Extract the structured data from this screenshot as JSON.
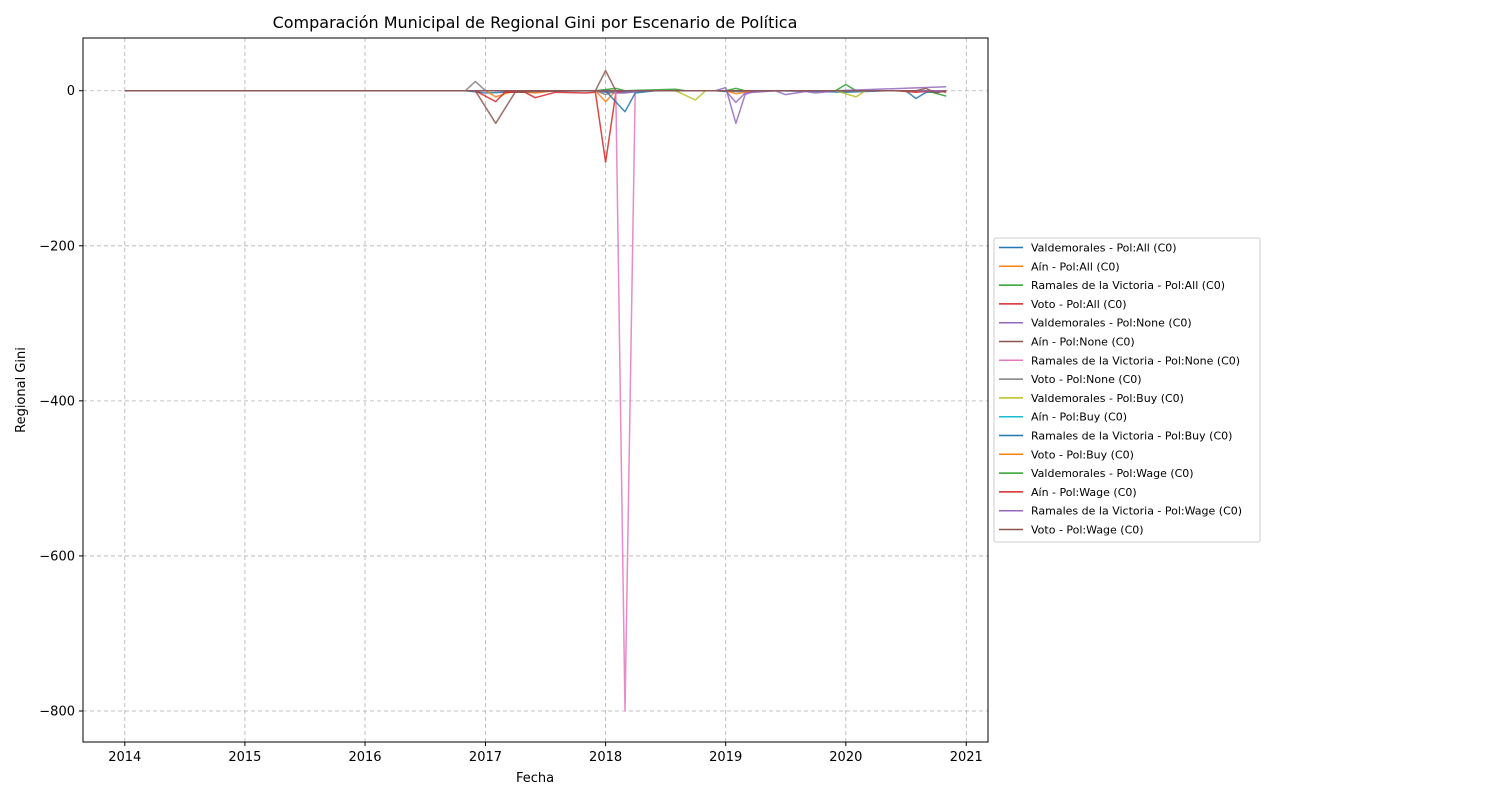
{
  "chart_data": {
    "type": "line",
    "title": "Comparación Municipal de Regional Gini por Escenario de Política",
    "xlabel": "Fecha",
    "ylabel": "Regional Gini",
    "x_ticks": [
      "2014",
      "2015",
      "2016",
      "2017",
      "2018",
      "2019",
      "2020",
      "2021"
    ],
    "y_ticks": [
      0,
      -200,
      -400,
      -600,
      -800
    ],
    "y_tick_labels": [
      "0",
      "−200",
      "−400",
      "−600",
      "−800"
    ],
    "xlim": [
      "2013-08-27",
      "2021-03-08"
    ],
    "ylim": [
      -840,
      68
    ],
    "grid": true,
    "legend_position": "center-right outside",
    "series": [
      {
        "name": "Valdemorales - Pol:All (C0)",
        "color": "#1f77b4",
        "points": [
          [
            "2014-01-01",
            0
          ],
          [
            "2016-11-01",
            0
          ],
          [
            "2017-01-01",
            -3
          ],
          [
            "2017-03-01",
            -2
          ],
          [
            "2017-06-01",
            -1
          ],
          [
            "2017-12-01",
            0
          ],
          [
            "2018-01-01",
            -2
          ],
          [
            "2018-03-01",
            -2
          ],
          [
            "2018-05-01",
            0
          ],
          [
            "2018-12-01",
            0
          ],
          [
            "2019-01-01",
            -1
          ],
          [
            "2019-03-01",
            -1
          ],
          [
            "2019-06-01",
            0
          ],
          [
            "2019-10-01",
            -1
          ],
          [
            "2020-01-01",
            -2
          ],
          [
            "2020-05-01",
            0
          ],
          [
            "2020-07-01",
            0
          ],
          [
            "2020-08-01",
            -10
          ],
          [
            "2020-09-01",
            -2
          ],
          [
            "2020-10-01",
            -2
          ],
          [
            "2020-11-01",
            0
          ]
        ]
      },
      {
        "name": "Aín - Pol:All (C0)",
        "color": "#ff7f0e",
        "points": [
          [
            "2014-01-01",
            0
          ],
          [
            "2016-11-01",
            0
          ],
          [
            "2017-01-01",
            0
          ],
          [
            "2017-02-01",
            -8
          ],
          [
            "2017-04-01",
            0
          ],
          [
            "2017-06-01",
            -3
          ],
          [
            "2017-08-01",
            0
          ],
          [
            "2017-12-01",
            0
          ],
          [
            "2018-01-01",
            -14
          ],
          [
            "2018-02-01",
            0
          ],
          [
            "2018-12-01",
            0
          ],
          [
            "2019-01-01",
            0
          ],
          [
            "2019-02-01",
            -4
          ],
          [
            "2019-04-01",
            0
          ],
          [
            "2020-11-01",
            0
          ]
        ]
      },
      {
        "name": "Ramales de la Victoria - Pol:All (C0)",
        "color": "#2ca02c",
        "points": [
          [
            "2014-01-01",
            0
          ],
          [
            "2017-12-01",
            0
          ],
          [
            "2018-02-01",
            3
          ],
          [
            "2018-03-01",
            0
          ],
          [
            "2018-08-01",
            2
          ],
          [
            "2018-09-01",
            0
          ],
          [
            "2019-01-01",
            0
          ],
          [
            "2019-02-01",
            3
          ],
          [
            "2019-03-01",
            0
          ],
          [
            "2019-12-01",
            0
          ],
          [
            "2020-01-01",
            8
          ],
          [
            "2020-02-01",
            0
          ],
          [
            "2020-11-01",
            0
          ]
        ]
      },
      {
        "name": "Voto - Pol:All (C0)",
        "color": "#d62728",
        "points": [
          [
            "2014-01-01",
            0
          ],
          [
            "2016-12-01",
            0
          ],
          [
            "2017-02-01",
            -14
          ],
          [
            "2017-03-01",
            -2
          ],
          [
            "2017-05-01",
            -2
          ],
          [
            "2017-06-01",
            -9
          ],
          [
            "2017-08-01",
            -2
          ],
          [
            "2017-11-01",
            -3
          ],
          [
            "2017-12-01",
            -2
          ],
          [
            "2018-01-01",
            -92
          ],
          [
            "2018-02-01",
            -3
          ],
          [
            "2018-03-01",
            0
          ],
          [
            "2020-11-01",
            0
          ]
        ]
      },
      {
        "name": "Valdemorales - Pol:None (C0)",
        "color": "#9467bd",
        "points": [
          [
            "2014-01-01",
            0
          ],
          [
            "2017-12-01",
            0
          ],
          [
            "2018-02-01",
            -3
          ],
          [
            "2018-03-01",
            -3
          ],
          [
            "2018-05-01",
            0
          ],
          [
            "2019-01-01",
            0
          ],
          [
            "2019-02-01",
            -15
          ],
          [
            "2019-03-01",
            -3
          ],
          [
            "2019-06-01",
            0
          ],
          [
            "2019-07-01",
            -5
          ],
          [
            "2019-09-01",
            -1
          ],
          [
            "2019-10-01",
            -3
          ],
          [
            "2019-12-01",
            0
          ],
          [
            "2020-11-01",
            5
          ]
        ]
      },
      {
        "name": "Aín - Pol:None (C0)",
        "color": "#8c564b",
        "points": [
          [
            "2014-01-01",
            0
          ],
          [
            "2016-12-01",
            0
          ],
          [
            "2017-02-01",
            -42
          ],
          [
            "2017-04-01",
            -2
          ],
          [
            "2017-09-01",
            0
          ],
          [
            "2017-12-01",
            0
          ],
          [
            "2018-01-01",
            26
          ],
          [
            "2018-02-01",
            0
          ],
          [
            "2018-03-01",
            0
          ],
          [
            "2020-11-01",
            0
          ]
        ]
      },
      {
        "name": "Ramales de la Victoria - Pol:None (C0)",
        "color": "#e377c2",
        "points": [
          [
            "2014-01-01",
            0
          ],
          [
            "2017-12-01",
            0
          ],
          [
            "2018-01-01",
            0
          ],
          [
            "2018-02-01",
            0
          ],
          [
            "2018-03-01",
            -800
          ],
          [
            "2018-04-01",
            0
          ],
          [
            "2018-05-01",
            0
          ],
          [
            "2020-11-01",
            0
          ]
        ]
      },
      {
        "name": "Voto - Pol:None (C0)",
        "color": "#7f7f7f",
        "points": [
          [
            "2014-01-01",
            0
          ],
          [
            "2016-11-01",
            0
          ],
          [
            "2016-12-01",
            12
          ],
          [
            "2017-01-01",
            0
          ],
          [
            "2017-12-01",
            0
          ],
          [
            "2018-01-01",
            -5
          ],
          [
            "2018-02-01",
            0
          ],
          [
            "2020-11-01",
            0
          ]
        ]
      },
      {
        "name": "Valdemorales - Pol:Buy (C0)",
        "color": "#bcbd22",
        "points": [
          [
            "2014-01-01",
            0
          ],
          [
            "2018-08-01",
            0
          ],
          [
            "2018-10-01",
            -12
          ],
          [
            "2018-11-01",
            0
          ],
          [
            "2019-12-01",
            0
          ],
          [
            "2020-02-01",
            -8
          ],
          [
            "2020-03-01",
            0
          ],
          [
            "2020-11-01",
            0
          ]
        ]
      },
      {
        "name": "Aín - Pol:Buy (C0)",
        "color": "#17becf",
        "points": [
          [
            "2014-01-01",
            0
          ],
          [
            "2020-11-01",
            0
          ]
        ]
      },
      {
        "name": "Ramales de la Victoria - Pol:Buy (C0)",
        "color": "#1f77b4",
        "points": [
          [
            "2014-01-01",
            0
          ],
          [
            "2018-01-01",
            0
          ],
          [
            "2018-03-01",
            -27
          ],
          [
            "2018-04-01",
            -3
          ],
          [
            "2018-06-01",
            0
          ],
          [
            "2020-11-01",
            0
          ]
        ]
      },
      {
        "name": "Voto - Pol:Buy (C0)",
        "color": "#ff7f0e",
        "points": [
          [
            "2014-01-01",
            0
          ],
          [
            "2020-11-01",
            0
          ]
        ]
      },
      {
        "name": "Valdemorales - Pol:Wage (C0)",
        "color": "#2ca02c",
        "points": [
          [
            "2014-01-01",
            0
          ],
          [
            "2020-09-01",
            0
          ],
          [
            "2020-11-01",
            -7
          ]
        ]
      },
      {
        "name": "Aín - Pol:Wage (C0)",
        "color": "#d62728",
        "points": [
          [
            "2014-01-01",
            0
          ],
          [
            "2020-06-01",
            0
          ],
          [
            "2020-08-01",
            -2
          ],
          [
            "2020-10-01",
            0
          ],
          [
            "2020-11-01",
            -2
          ]
        ]
      },
      {
        "name": "Ramales de la Victoria - Pol:Wage (C0)",
        "color": "#9467bd",
        "points": [
          [
            "2014-01-01",
            0
          ],
          [
            "2018-12-01",
            0
          ],
          [
            "2019-01-01",
            4
          ],
          [
            "2019-02-01",
            -42
          ],
          [
            "2019-03-01",
            -5
          ],
          [
            "2019-04-01",
            0
          ],
          [
            "2020-11-01",
            0
          ]
        ]
      },
      {
        "name": "Voto - Pol:Wage (C0)",
        "color": "#8c564b",
        "points": [
          [
            "2014-01-01",
            0
          ],
          [
            "2020-08-01",
            0
          ],
          [
            "2020-09-01",
            3
          ],
          [
            "2020-10-01",
            -3
          ],
          [
            "2020-11-01",
            0
          ]
        ]
      }
    ]
  }
}
